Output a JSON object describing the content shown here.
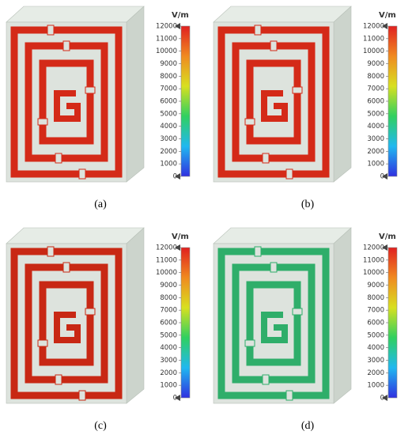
{
  "panels": [
    {
      "label": "(a)",
      "colorbar": {
        "unit": "V/m",
        "lim": [
          0,
          12000
        ],
        "ticks": [
          0,
          1000,
          2000,
          3000,
          4000,
          5000,
          6000,
          7000,
          8000,
          9000,
          10000,
          11000,
          12000
        ]
      }
    },
    {
      "label": "(b)",
      "colorbar": {
        "unit": "V/m",
        "lim": [
          0,
          12000
        ],
        "ticks": [
          0,
          1000,
          2000,
          3000,
          4000,
          5000,
          6000,
          7000,
          8000,
          9000,
          10000,
          11000,
          12000
        ]
      }
    },
    {
      "label": "(c)",
      "colorbar": {
        "unit": "V/m",
        "lim": [
          0,
          12000
        ],
        "ticks": [
          0,
          1000,
          2000,
          3000,
          4000,
          5000,
          6000,
          7000,
          8000,
          9000,
          10000,
          11000,
          12000
        ]
      }
    },
    {
      "label": "(d)",
      "colorbar": {
        "unit": "V/m",
        "lim": [
          0,
          12000
        ],
        "ticks": [
          0,
          1000,
          2000,
          3000,
          4000,
          5000,
          6000,
          7000,
          8000,
          9000,
          10000,
          11000,
          12000
        ]
      }
    }
  ]
}
